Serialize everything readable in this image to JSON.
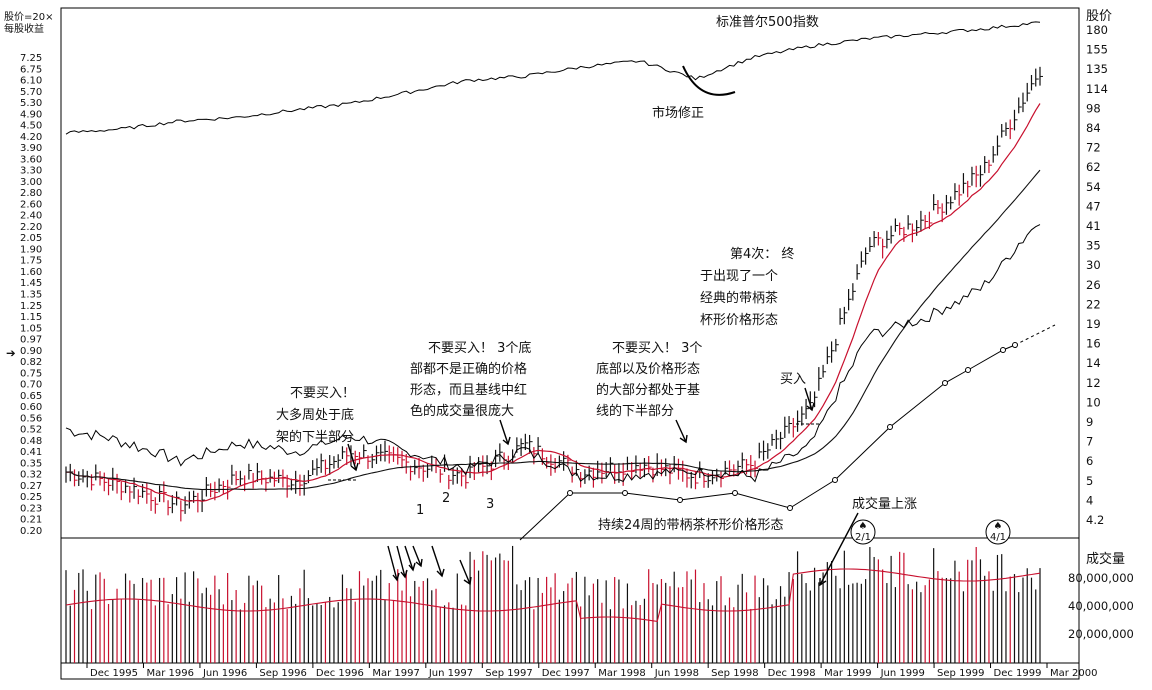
{
  "chart_data": {
    "type": "line",
    "title": "",
    "price_axis": {
      "label": "股价",
      "scale": "log",
      "right_ticks": [
        "180",
        "155",
        "135",
        "114",
        "98",
        "84",
        "72",
        "62",
        "54",
        "47",
        "41",
        "35",
        "30",
        "26",
        "22",
        "19",
        "16",
        "14",
        "12",
        "10",
        "9",
        "7",
        "6",
        "5",
        "4",
        "4.2"
      ],
      "left_ticks_label": "股价=20×每股收益",
      "left_ticks": [
        "7.25",
        "6.75",
        "6.10",
        "5.70",
        "5.30",
        "4.90",
        "4.50",
        "4.20",
        "3.90",
        "3.60",
        "3.30",
        "3.00",
        "2.80",
        "2.60",
        "2.40",
        "2.20",
        "2.05",
        "1.90",
        "1.75",
        "1.60",
        "1.45",
        "1.35",
        "1.25",
        "1.15",
        "1.05",
        "0.97",
        "0.90",
        "0.82",
        "0.75",
        "0.70",
        "0.65",
        "0.60",
        "0.56",
        "0.52",
        "0.48",
        "0.41",
        "0.35",
        "0.32",
        "0.27",
        "0.25",
        "0.23",
        "0.21",
        "0.20"
      ]
    },
    "volume_axis": {
      "label": "成交量",
      "ticks": [
        "80,000,000",
        "40,000,000",
        "20,000,000"
      ]
    },
    "x_ticks": [
      "Dec 1995",
      "Mar 1996",
      "Jun 1996",
      "Sep 1996",
      "Dec 1996",
      "Mar 1997",
      "Jun 1997",
      "Sep 1997",
      "Dec 1997",
      "Mar 1998",
      "Jun 1998",
      "Sep 1998",
      "Dec 1998",
      "Mar 1999",
      "Jun 1999",
      "Sep 1999",
      "Dec 1999",
      "Mar 2000"
    ],
    "series": [
      {
        "name": "标准普尔500指数",
        "approx_values": [
          640,
          660,
          700,
          720,
          760,
          800,
          870,
          950,
          980,
          1050,
          1100,
          960,
          1130,
          1230,
          1300,
          1350,
          1400,
          1470
        ]
      },
      {
        "name": "",
        "approx_values": [
          0.31,
          0.28,
          0.24,
          0.3,
          0.29,
          0.36,
          0.33,
          0.3,
          0.38,
          0.31,
          0.33,
          0.3,
          0.33,
          0.5,
          1.7,
          2.1,
          3.0,
          6.5
        ]
      }
    ],
    "annotations": [
      {
        "id": "sp500",
        "text": "标准普尔500指数"
      },
      {
        "id": "correction",
        "text": "市场修正"
      },
      {
        "id": "no_buy_1",
        "lines": [
          "不要买入！",
          "大多周处于底",
          "架的下半部分"
        ]
      },
      {
        "id": "no_buy_2",
        "lines": [
          "不要买入！ 3个底",
          "部都不是正确的价格",
          "形态，而且基线中红",
          "色的成交量很庞大"
        ]
      },
      {
        "id": "no_buy_3",
        "lines": [
          "不要买入！ 3个",
          "底部以及价格形态",
          "的大部分都处于基",
          "线的下半部分"
        ]
      },
      {
        "id": "fourth",
        "lines": [
          "第4次： 终",
          "于出现了一个",
          "经典的带柄茶",
          "杯形价格形态"
        ]
      },
      {
        "id": "buy",
        "text": "买入"
      },
      {
        "id": "base_24",
        "text": "持续24周的带柄茶杯形价格形态"
      },
      {
        "id": "vol_up",
        "text": "成交量上涨"
      },
      {
        "id": "bottom1",
        "text": "1"
      },
      {
        "id": "bottom2",
        "text": "2"
      },
      {
        "id": "bottom3",
        "text": "3"
      },
      {
        "id": "split1",
        "text": "2/1"
      },
      {
        "id": "split2",
        "text": "4/1"
      }
    ]
  },
  "colors": {
    "up": "#111111",
    "down": "#c8102e",
    "ma": "#c8102e",
    "line": "#111111"
  }
}
